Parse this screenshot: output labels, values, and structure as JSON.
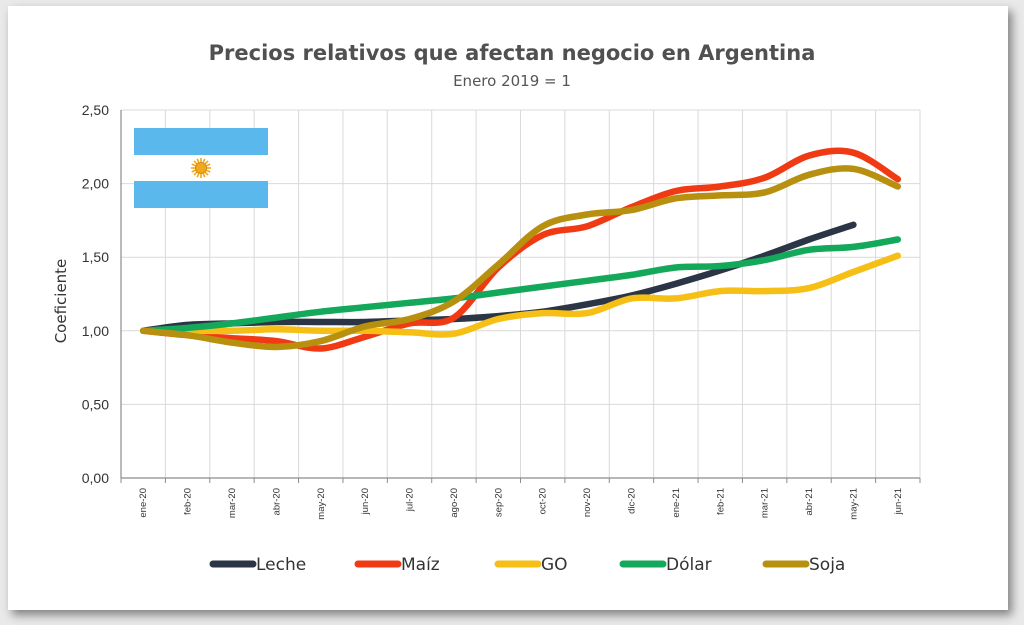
{
  "chart_data": {
    "type": "line",
    "title": "Precios relativos que afectan negocio en Argentina",
    "subtitle": "Enero 2019 = 1",
    "ylabel": "Coeficiente",
    "xlabel": "",
    "ylim": [
      0,
      2.5
    ],
    "yticks": [
      "0,00",
      "0,50",
      "1,00",
      "1,50",
      "2,00",
      "2,50"
    ],
    "categories": [
      "ene-20",
      "feb-20",
      "mar-20",
      "abr-20",
      "may-20",
      "jun-20",
      "jul-20",
      "ago-20",
      "sep-20",
      "oct-20",
      "nov-20",
      "dic-20",
      "ene-21",
      "feb-21",
      "mar-21",
      "abr-21",
      "may-21",
      "jun-21"
    ],
    "grid": true,
    "legend": "bottom",
    "series": [
      {
        "name": "Leche",
        "color": "#2b3545",
        "values": [
          1.0,
          1.04,
          1.05,
          1.06,
          1.06,
          1.06,
          1.07,
          1.08,
          1.1,
          1.13,
          1.18,
          1.24,
          1.32,
          1.41,
          1.51,
          1.62,
          1.72,
          null
        ]
      },
      {
        "name": "Maíz",
        "color": "#f03a14",
        "values": [
          1.0,
          0.97,
          0.95,
          0.93,
          0.88,
          0.96,
          1.05,
          1.09,
          1.43,
          1.65,
          1.71,
          1.84,
          1.95,
          1.98,
          2.04,
          2.19,
          2.21,
          2.03
        ]
      },
      {
        "name": "GO",
        "color": "#f5bf16",
        "values": [
          1.0,
          1.0,
          1.0,
          1.01,
          1.0,
          1.0,
          0.99,
          0.98,
          1.08,
          1.12,
          1.12,
          1.22,
          1.22,
          1.27,
          1.27,
          1.29,
          1.4,
          1.51
        ]
      },
      {
        "name": "Dólar",
        "color": "#14a85a",
        "values": [
          1.0,
          1.02,
          1.05,
          1.09,
          1.13,
          1.16,
          1.19,
          1.22,
          1.26,
          1.3,
          1.34,
          1.38,
          1.43,
          1.44,
          1.48,
          1.55,
          1.57,
          1.62
        ]
      },
      {
        "name": "Soja",
        "color": "#b8900f",
        "values": [
          1.0,
          0.97,
          0.92,
          0.89,
          0.93,
          1.03,
          1.08,
          1.2,
          1.45,
          1.71,
          1.79,
          1.82,
          1.9,
          1.92,
          1.94,
          2.06,
          2.1,
          1.98
        ]
      }
    ]
  },
  "flag": {
    "icon": "argentina-flag-icon",
    "stripe_color": "#5bb8ec",
    "sun_color": "#f2a81c"
  }
}
